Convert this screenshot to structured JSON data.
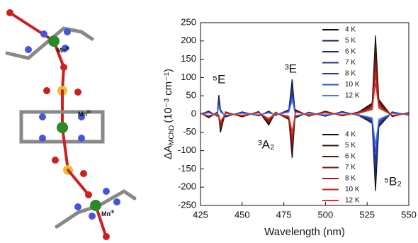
{
  "structure": {
    "metal": [
      "Mn",
      "Mn",
      "Mn"
    ],
    "oxidation": [
      "III",
      "III",
      "III"
    ]
  },
  "chart_data": {
    "type": "line",
    "x_label": "Wavelength (nm)",
    "y_label": {
      "main": "ΔA",
      "sub": "MChD",
      "unit": "(10⁻³ cm⁻¹)"
    },
    "annotations": [
      "⁵E",
      "³E",
      "³A₂",
      "⁵B₂"
    ],
    "xlim": [
      425,
      550
    ],
    "xticks": [
      425,
      450,
      475,
      500,
      525,
      550
    ],
    "ylim": [
      -250,
      250
    ],
    "yticks": [
      -250,
      -200,
      -150,
      -100,
      -50,
      0,
      50,
      100,
      150,
      200,
      250
    ],
    "x": [
      425,
      430,
      435,
      436,
      437,
      440,
      450,
      460,
      466,
      470,
      478,
      480,
      482,
      490,
      500,
      510,
      520,
      528,
      530,
      532,
      540,
      550
    ],
    "series": [
      {
        "name": "4 K",
        "color": "#111111",
        "legend": "upper right",
        "values": [
          0,
          8,
          -6,
          52,
          12,
          -8,
          6,
          -5,
          8,
          -4,
          12,
          95,
          -10,
          5,
          -6,
          7,
          -4,
          -25,
          -210,
          -35,
          6,
          -3
        ]
      },
      {
        "name": "5 K",
        "color": "#1a1a40",
        "legend": "upper right",
        "values": [
          0,
          7,
          -5,
          47,
          11,
          -7,
          5,
          -5,
          7,
          -4,
          11,
          86,
          -9,
          5,
          -5,
          6,
          -4,
          -23,
          -189,
          -32,
          5,
          -3
        ]
      },
      {
        "name": "6 K",
        "color": "#1f2a6a",
        "legend": "upper right",
        "values": [
          0,
          6,
          -5,
          42,
          10,
          -6,
          5,
          -4,
          6,
          -3,
          10,
          76,
          -8,
          4,
          -5,
          6,
          -3,
          -20,
          -168,
          -28,
          5,
          -2
        ]
      },
      {
        "name": "7 K",
        "color": "#24328a",
        "legend": "upper right",
        "values": [
          0,
          6,
          -4,
          36,
          8,
          -6,
          4,
          -4,
          6,
          -3,
          8,
          67,
          -7,
          4,
          -4,
          5,
          -3,
          -18,
          -147,
          -25,
          4,
          -2
        ]
      },
      {
        "name": "8 K",
        "color": "#2a3aa8",
        "legend": "upper right",
        "values": [
          0,
          5,
          -4,
          31,
          7,
          -5,
          4,
          -3,
          5,
          -2,
          7,
          57,
          -6,
          3,
          -4,
          4,
          -2,
          -15,
          -126,
          -21,
          4,
          -2
        ]
      },
      {
        "name": "10 K",
        "color": "#3050d0",
        "legend": "upper right",
        "values": [
          0,
          4,
          -3,
          26,
          6,
          -4,
          3,
          -3,
          4,
          -2,
          6,
          48,
          -5,
          3,
          -3,
          4,
          -2,
          -13,
          -105,
          -18,
          3,
          -2
        ]
      },
      {
        "name": "12 K",
        "color": "#4a78e8",
        "legend": "upper right",
        "values": [
          0,
          3,
          -2,
          21,
          5,
          -3,
          2,
          -2,
          3,
          -2,
          5,
          38,
          -4,
          2,
          -2,
          3,
          -2,
          -10,
          -84,
          -14,
          2,
          -1
        ]
      },
      {
        "name": "4 K",
        "color": "#111111",
        "legend": "lower right",
        "values": [
          3,
          -10,
          5,
          -8,
          -50,
          6,
          -8,
          7,
          -30,
          5,
          -15,
          -120,
          12,
          -6,
          8,
          -5,
          6,
          30,
          215,
          40,
          -7,
          4
        ]
      },
      {
        "name": "5 K",
        "color": "#3a1010",
        "legend": "lower right",
        "values": [
          3,
          -9,
          5,
          -7,
          -45,
          5,
          -7,
          6,
          -27,
          5,
          -14,
          -108,
          11,
          -5,
          7,
          -5,
          5,
          27,
          194,
          36,
          -6,
          4
        ]
      },
      {
        "name": "6 K",
        "color": "#5a1512",
        "legend": "lower right",
        "values": [
          2,
          -8,
          4,
          -6,
          -40,
          5,
          -6,
          6,
          -24,
          4,
          -12,
          -96,
          10,
          -5,
          6,
          -4,
          5,
          24,
          172,
          32,
          -6,
          3
        ]
      },
      {
        "name": "7 K",
        "color": "#7a1a15",
        "legend": "lower right",
        "values": [
          2,
          -7,
          4,
          -6,
          -35,
          4,
          -6,
          5,
          -21,
          4,
          -11,
          -84,
          8,
          -4,
          6,
          -4,
          4,
          21,
          151,
          28,
          -5,
          3
        ]
      },
      {
        "name": "8 K",
        "color": "#9a2018",
        "legend": "lower right",
        "values": [
          2,
          -6,
          3,
          -5,
          -30,
          4,
          -5,
          4,
          -18,
          3,
          -9,
          -72,
          7,
          -4,
          5,
          -3,
          4,
          18,
          129,
          24,
          -4,
          2
        ]
      },
      {
        "name": "10 K",
        "color": "#c0281c",
        "legend": "lower right",
        "values": [
          2,
          -5,
          3,
          -4,
          -25,
          3,
          -4,
          4,
          -15,
          3,
          -8,
          -60,
          6,
          -3,
          4,
          -3,
          3,
          15,
          108,
          20,
          -4,
          2
        ]
      },
      {
        "name": "12 K",
        "color": "#e03020",
        "legend": "lower right",
        "values": [
          1,
          -4,
          2,
          -3,
          -20,
          2,
          -3,
          3,
          -12,
          2,
          -6,
          -48,
          5,
          -2,
          3,
          -2,
          2,
          12,
          86,
          16,
          -3,
          2
        ]
      }
    ]
  }
}
